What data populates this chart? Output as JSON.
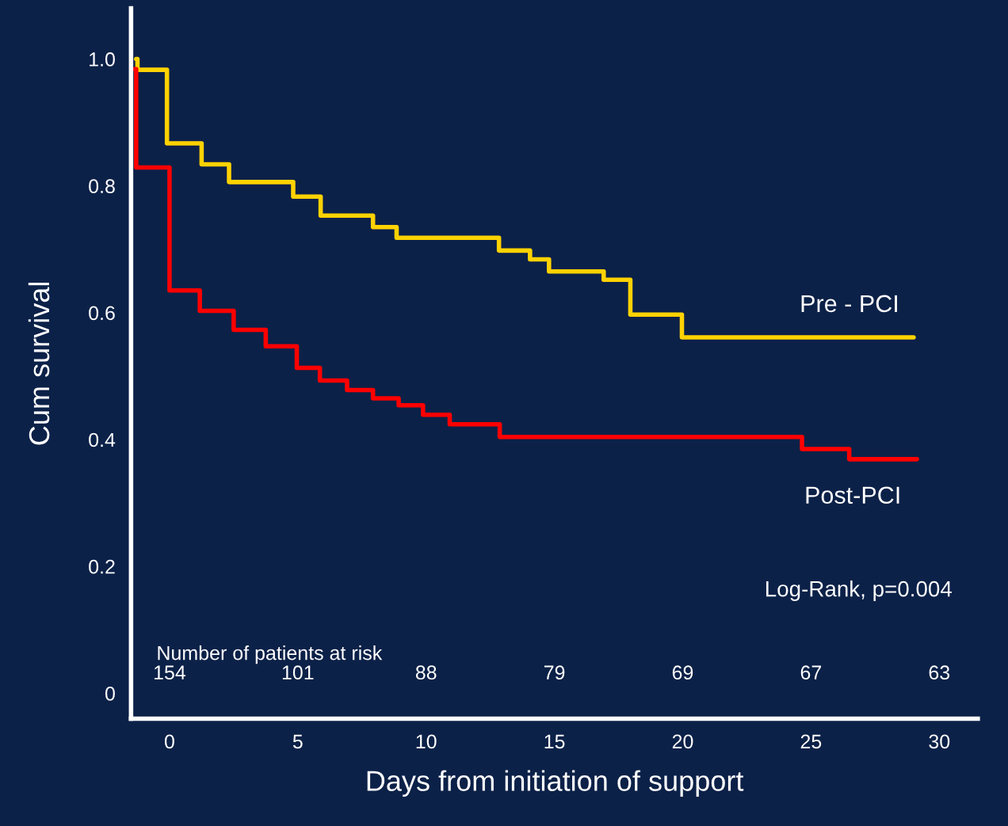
{
  "chart_data": {
    "type": "step",
    "ylabel": "Cum survival",
    "xlabel": "Days from initiation of support",
    "xlim": [
      -1.5,
      31.5
    ],
    "ylim": [
      -0.04,
      1.08
    ],
    "xticks": [
      0,
      5,
      10,
      15,
      20,
      25,
      30
    ],
    "yticks": [
      0,
      0.2,
      0.4,
      0.6,
      0.8,
      {
        "value": 1,
        "label": "1.0"
      }
    ],
    "grid": false,
    "legend": false,
    "marker": "none",
    "line_style": "solid",
    "series": [
      {
        "name": "Pre - PCI",
        "color": "#ffd200",
        "x": [
          -1.3,
          -1.25,
          -0.1,
          1.25,
          2.32,
          4.82,
          5.89,
          7.93,
          8.85,
          12.84,
          14.05,
          14.79,
          16.92,
          17.96,
          19.97,
          29.0
        ],
        "values": [
          1.0,
          0.983,
          0.867,
          0.834,
          0.806,
          0.783,
          0.753,
          0.735,
          0.718,
          0.698,
          0.684,
          0.665,
          0.652,
          0.597,
          0.561,
          0.561
        ]
      },
      {
        "name": "Post-PCI",
        "color": "#ff0000",
        "x": [
          -1.36,
          -1.3,
          0,
          1.18,
          2.5,
          3.75,
          4.96,
          5.86,
          6.92,
          7.93,
          8.93,
          9.88,
          10.92,
          12.87,
          24.65,
          26.49,
          29.13
        ],
        "values": [
          0.984,
          0.829,
          0.635,
          0.603,
          0.573,
          0.547,
          0.513,
          0.493,
          0.478,
          0.465,
          0.454,
          0.439,
          0.424,
          0.404,
          0.385,
          0.369,
          0.369
        ]
      }
    ],
    "annotations": [
      "Log-Rank, p=0.004",
      "Number of patients at risk",
      "154",
      "101",
      "88",
      "79",
      "69",
      "67",
      "63"
    ]
  }
}
